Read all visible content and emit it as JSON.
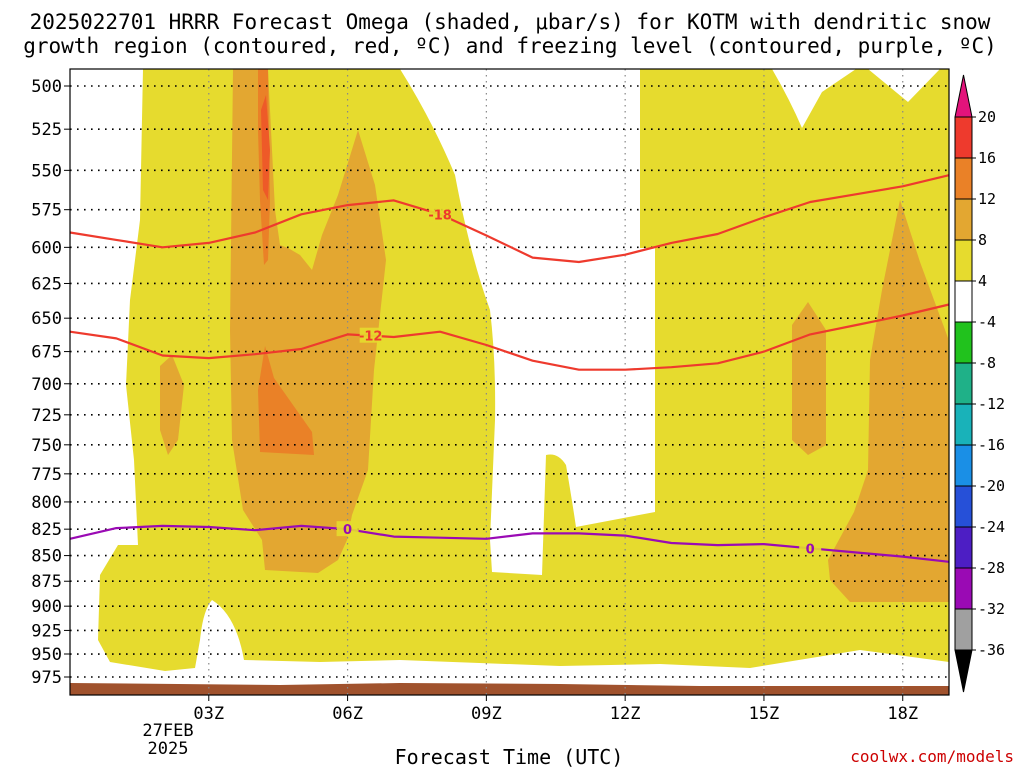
{
  "title_line1": "2025022701 HRRR Forecast Omega (shaded, μbar/s) for KOTM with dendritic snow",
  "title_line2": "growth region (contoured, red, ºC) and freezing level (contoured, purple, ºC)",
  "xlabel": "Forecast Time (UTC)",
  "credit": "coolwx.com/models",
  "date_label_line1": "27FEB",
  "date_label_line2": "2025",
  "colors": {
    "shade_4_8": "#e6db2e",
    "shade_8_12": "#e3a731",
    "shade_12_16": "#ea8127",
    "shade_16_20": "#ee5a28",
    "isotherm_dgz": "#ee3a2d",
    "freezing_level": "#9a0ab4",
    "ground": "#a0522d"
  },
  "chart_data": {
    "type": "heatmap",
    "title": "2025022701 HRRR Forecast Omega (shaded, μbar/s) for KOTM with dendritic snow growth region (contoured, red, ºC) and freezing level (contoured, purple, ºC)",
    "xlabel": "Forecast Time (UTC)",
    "ylabel": "",
    "x_ticks": [
      "03Z",
      "06Z",
      "09Z",
      "12Z",
      "15Z",
      "18Z"
    ],
    "x_tick_hours": [
      3,
      6,
      9,
      12,
      15,
      18
    ],
    "xlim_hours": [
      0,
      19
    ],
    "y_ticks": [
      500,
      525,
      550,
      575,
      600,
      625,
      650,
      675,
      700,
      725,
      750,
      775,
      800,
      825,
      850,
      875,
      900,
      925,
      950,
      975
    ],
    "ylim_hpa": [
      490,
      990
    ],
    "y_scale": "log-pressure",
    "grid": true,
    "colorbar": {
      "labels": [
        "20",
        "16",
        "12",
        "8",
        "4",
        "-4",
        "-8",
        "-12",
        "-16",
        "-20",
        "-24",
        "-28",
        "-32",
        "-36"
      ],
      "colors": [
        "#e3137b",
        "#ee3a2d",
        "#ea8127",
        "#e3a731",
        "#e6db2e",
        "#ffffff",
        "#21c21d",
        "#1fb188",
        "#19b2b9",
        "#1a8fe6",
        "#2650d8",
        "#4d1ec4",
        "#9a0ab4",
        "#a0a0a0",
        "#000000"
      ]
    },
    "contours": [
      {
        "label": "-18",
        "color": "#ee3a2d",
        "x": [
          0,
          1,
          2,
          3,
          4,
          5,
          6,
          7,
          8,
          9,
          10,
          11,
          12,
          13,
          14,
          15,
          16,
          17,
          18,
          19
        ],
        "y": [
          590,
          595,
          600,
          597,
          590,
          578,
          572,
          569,
          578,
          592,
          607,
          610,
          605,
          597,
          591,
          580,
          570,
          565,
          560,
          553
        ]
      },
      {
        "label": "-12",
        "color": "#ee3a2d",
        "x": [
          0,
          1,
          2,
          3,
          4,
          5,
          6,
          7,
          8,
          9,
          10,
          11,
          12,
          13,
          14,
          15,
          16,
          17,
          18,
          19
        ],
        "y": [
          660,
          665,
          678,
          680,
          677,
          673,
          662,
          664,
          660,
          670,
          682,
          689,
          689,
          687,
          684,
          675,
          662,
          655,
          648,
          640
        ]
      },
      {
        "label": "0",
        "color": "#9a0ab4",
        "x": [
          0,
          1,
          2,
          3,
          4,
          5,
          6,
          7,
          8,
          9,
          10,
          11,
          12,
          13,
          14,
          15,
          16,
          17,
          18,
          19
        ],
        "y": [
          834,
          824,
          822,
          823,
          826,
          822,
          825,
          832,
          833,
          834,
          829,
          829,
          831,
          838,
          840,
          839,
          843,
          847,
          851,
          856
        ]
      }
    ],
    "contour_labels": [
      "-18",
      "-12",
      "0",
      "0"
    ]
  }
}
